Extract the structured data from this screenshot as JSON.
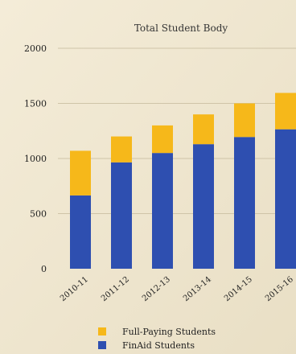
{
  "chart_data": {
    "type": "bar",
    "stacked": true,
    "title": "Total Student Body",
    "categories": [
      "2010-11",
      "2011-12",
      "2012-13",
      "2013-14",
      "2014-15",
      "2015-16"
    ],
    "series": [
      {
        "name": "FinAid Students",
        "values": [
          665,
          965,
          1050,
          1130,
          1195,
          1265
        ],
        "color": "#2e4fb0"
      },
      {
        "name": "Full-Paying Students",
        "values": [
          405,
          235,
          250,
          270,
          305,
          330
        ],
        "color": "#f6b81a"
      }
    ],
    "ylim": [
      0,
      2000
    ],
    "yticks": [
      0,
      500,
      1000,
      1500,
      2000
    ],
    "grid": true,
    "legend_position": "bottom-left"
  }
}
